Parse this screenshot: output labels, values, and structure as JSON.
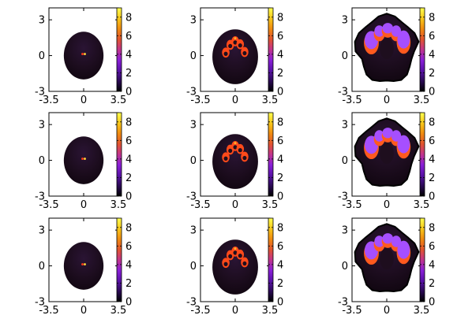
{
  "chart_data": {
    "type": "heatmap",
    "rows": 3,
    "cols": 3,
    "xlim": [
      -3.5,
      3.5
    ],
    "ylim": [
      -3,
      4
    ],
    "x_ticks": [
      "-3.5",
      "0",
      "3.5"
    ],
    "y_ticks": [
      "3",
      "0",
      "-3"
    ],
    "colorbar": {
      "min": 0,
      "max": 9,
      "ticks": [
        "8",
        "6",
        "4",
        "2",
        "0"
      ],
      "palette": [
        "#000000",
        "#2b0a55",
        "#5a12a8",
        "#8a1fd8",
        "#c2348c",
        "#e2542e",
        "#f08b10",
        "#f8c91a",
        "#ffff50"
      ]
    },
    "panels": [
      {
        "row": 0,
        "col": 0,
        "stage": "early",
        "body_radius": 2.0,
        "body_color": "#1e0e1e",
        "front_color": "#ff3b1a",
        "front_value": 6,
        "core_color": "#ffd23a"
      },
      {
        "row": 0,
        "col": 1,
        "stage": "middle",
        "body_radius": 2.3,
        "body_color": "#1e0e1e",
        "front_color": "#ff4a1a",
        "front_value": 6,
        "core_color": "#ffb02a"
      },
      {
        "row": 0,
        "col": 2,
        "stage": "late",
        "body_radius": 3.0,
        "body_color": "#1c0c1c",
        "front_color": "#ff5a1e",
        "front_value": 6,
        "core_color": "#a64fff"
      },
      {
        "row": 1,
        "col": 0,
        "stage": "early",
        "body_radius": 2.0,
        "body_color": "#1e0e1e",
        "front_color": "#ff3b1a",
        "front_value": 6,
        "core_color": "#ffd23a"
      },
      {
        "row": 1,
        "col": 1,
        "stage": "middle",
        "body_radius": 2.3,
        "body_color": "#1e0e1e",
        "front_color": "#ff4a1a",
        "front_value": 6,
        "core_color": "#ffb02a"
      },
      {
        "row": 1,
        "col": 2,
        "stage": "late",
        "body_radius": 3.0,
        "body_color": "#1c0c1c",
        "front_color": "#ff5a1e",
        "front_value": 6,
        "core_color": "#a64fff"
      },
      {
        "row": 2,
        "col": 0,
        "stage": "early",
        "body_radius": 2.0,
        "body_color": "#1e0e1e",
        "front_color": "#ff3b1a",
        "front_value": 6,
        "core_color": "#ffd23a"
      },
      {
        "row": 2,
        "col": 1,
        "stage": "middle",
        "body_radius": 2.3,
        "body_color": "#1e0e1e",
        "front_color": "#ff4a1a",
        "front_value": 6,
        "core_color": "#ffb02a"
      },
      {
        "row": 2,
        "col": 2,
        "stage": "late",
        "body_radius": 3.0,
        "body_color": "#1c0c1c",
        "front_color": "#ff5a1e",
        "front_value": 6,
        "core_color": "#a64fff"
      }
    ]
  }
}
